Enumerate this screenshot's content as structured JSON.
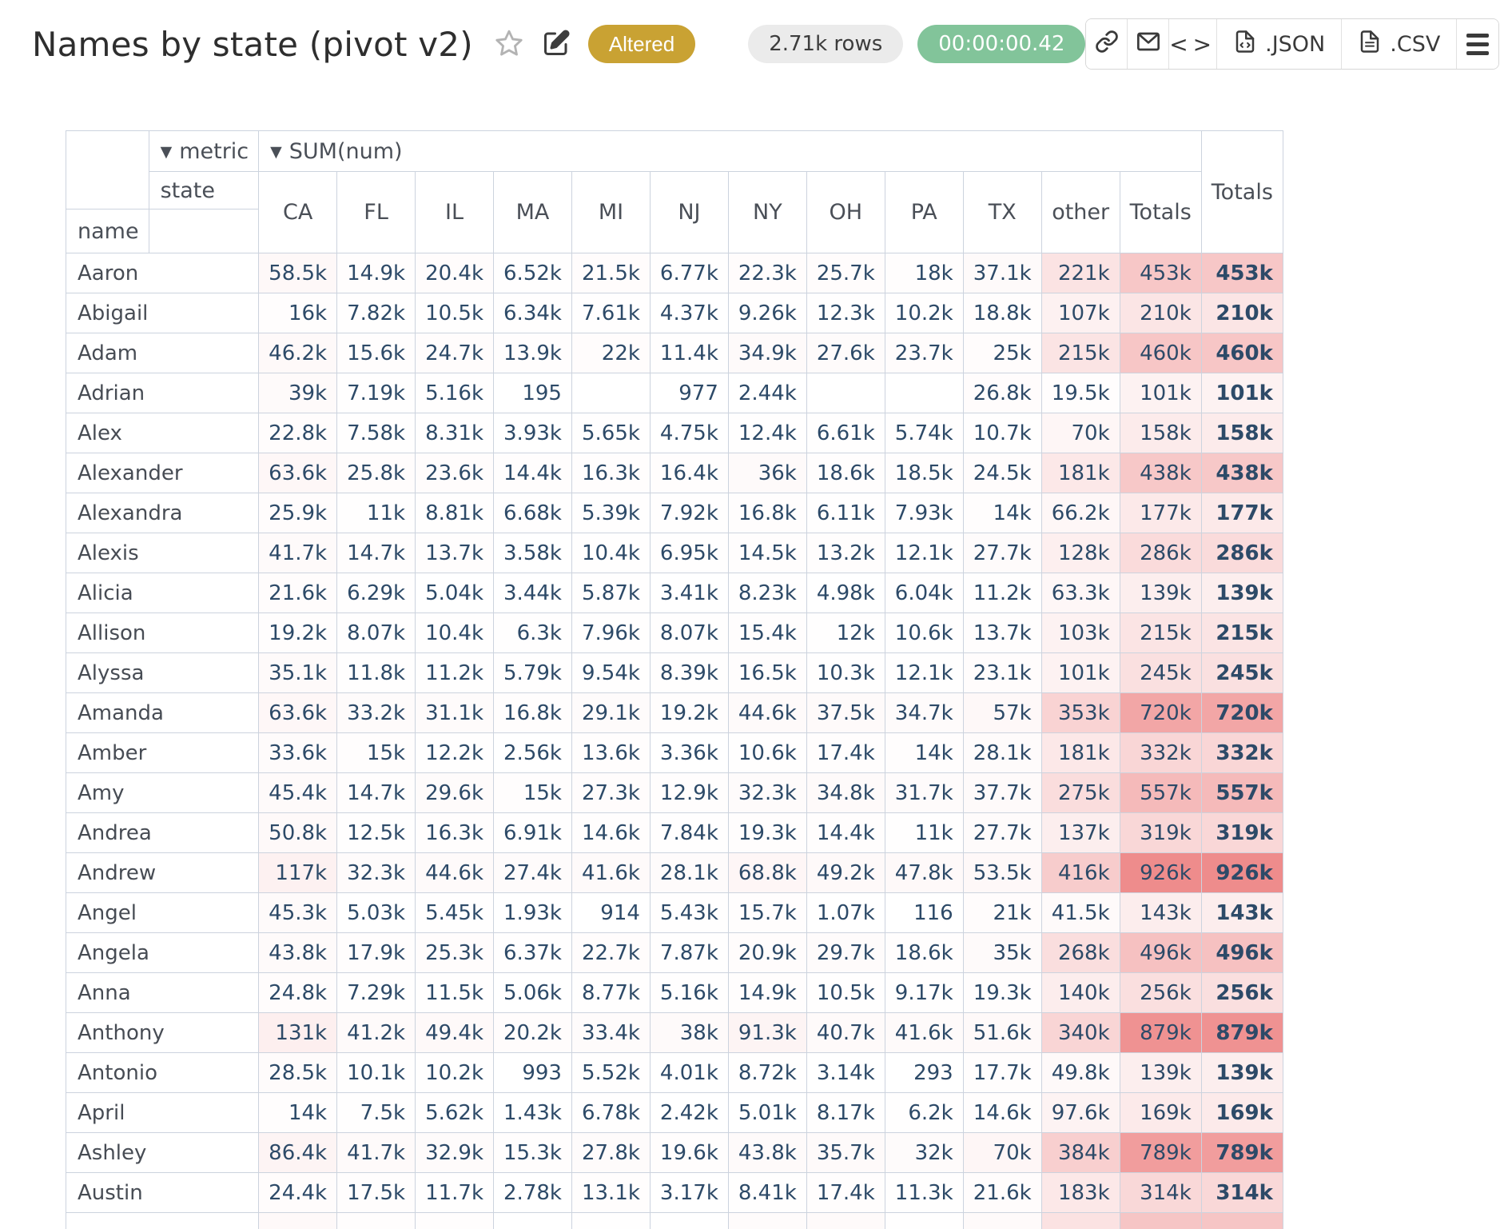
{
  "header": {
    "title": "Names by state (pivot v2)",
    "altered_badge": "Altered",
    "rows_badge": "2.71k rows",
    "timer_badge": "00:00:00.42",
    "toolbar": {
      "json_label": ".JSON",
      "csv_label": ".CSV"
    }
  },
  "colors": {
    "accent_gold": "#c9a233",
    "accent_green": "#82c49a",
    "heat_max_rgb": "238,140,140",
    "value_text": "#2d4a68",
    "grid_border": "#ccd3de"
  },
  "pivot": {
    "metric_caret": "▼",
    "metric_label": "metric",
    "sum_caret": "▼",
    "sum_label": "SUM(num)",
    "state_label": "state",
    "name_label": "name",
    "row_totals_label": "Totals",
    "grand_totals_label": "Totals",
    "columns": [
      "CA",
      "FL",
      "IL",
      "MA",
      "MI",
      "NJ",
      "NY",
      "OH",
      "PA",
      "TX",
      "other",
      "Totals"
    ],
    "max_value": 926000,
    "rows": [
      {
        "name": "Aaron",
        "values": [
          "58.5k",
          "14.9k",
          "20.4k",
          "6.52k",
          "21.5k",
          "6.77k",
          "22.3k",
          "25.7k",
          "18k",
          "37.1k",
          "221k",
          "453k"
        ],
        "total": "453k"
      },
      {
        "name": "Abigail",
        "values": [
          "16k",
          "7.82k",
          "10.5k",
          "6.34k",
          "7.61k",
          "4.37k",
          "9.26k",
          "12.3k",
          "10.2k",
          "18.8k",
          "107k",
          "210k"
        ],
        "total": "210k"
      },
      {
        "name": "Adam",
        "values": [
          "46.2k",
          "15.6k",
          "24.7k",
          "13.9k",
          "22k",
          "11.4k",
          "34.9k",
          "27.6k",
          "23.7k",
          "25k",
          "215k",
          "460k"
        ],
        "total": "460k"
      },
      {
        "name": "Adrian",
        "values": [
          "39k",
          "7.19k",
          "5.16k",
          "195",
          "",
          "977",
          "2.44k",
          "",
          "",
          "26.8k",
          "19.5k",
          "101k"
        ],
        "total": "101k"
      },
      {
        "name": "Alex",
        "values": [
          "22.8k",
          "7.58k",
          "8.31k",
          "3.93k",
          "5.65k",
          "4.75k",
          "12.4k",
          "6.61k",
          "5.74k",
          "10.7k",
          "70k",
          "158k"
        ],
        "total": "158k"
      },
      {
        "name": "Alexander",
        "values": [
          "63.6k",
          "25.8k",
          "23.6k",
          "14.4k",
          "16.3k",
          "16.4k",
          "36k",
          "18.6k",
          "18.5k",
          "24.5k",
          "181k",
          "438k"
        ],
        "total": "438k"
      },
      {
        "name": "Alexandra",
        "values": [
          "25.9k",
          "11k",
          "8.81k",
          "6.68k",
          "5.39k",
          "7.92k",
          "16.8k",
          "6.11k",
          "7.93k",
          "14k",
          "66.2k",
          "177k"
        ],
        "total": "177k"
      },
      {
        "name": "Alexis",
        "values": [
          "41.7k",
          "14.7k",
          "13.7k",
          "3.58k",
          "10.4k",
          "6.95k",
          "14.5k",
          "13.2k",
          "12.1k",
          "27.7k",
          "128k",
          "286k"
        ],
        "total": "286k"
      },
      {
        "name": "Alicia",
        "values": [
          "21.6k",
          "6.29k",
          "5.04k",
          "3.44k",
          "5.87k",
          "3.41k",
          "8.23k",
          "4.98k",
          "6.04k",
          "11.2k",
          "63.3k",
          "139k"
        ],
        "total": "139k"
      },
      {
        "name": "Allison",
        "values": [
          "19.2k",
          "8.07k",
          "10.4k",
          "6.3k",
          "7.96k",
          "8.07k",
          "15.4k",
          "12k",
          "10.6k",
          "13.7k",
          "103k",
          "215k"
        ],
        "total": "215k"
      },
      {
        "name": "Alyssa",
        "values": [
          "35.1k",
          "11.8k",
          "11.2k",
          "5.79k",
          "9.54k",
          "8.39k",
          "16.5k",
          "10.3k",
          "12.1k",
          "23.1k",
          "101k",
          "245k"
        ],
        "total": "245k"
      },
      {
        "name": "Amanda",
        "values": [
          "63.6k",
          "33.2k",
          "31.1k",
          "16.8k",
          "29.1k",
          "19.2k",
          "44.6k",
          "37.5k",
          "34.7k",
          "57k",
          "353k",
          "720k"
        ],
        "total": "720k"
      },
      {
        "name": "Amber",
        "values": [
          "33.6k",
          "15k",
          "12.2k",
          "2.56k",
          "13.6k",
          "3.36k",
          "10.6k",
          "17.4k",
          "14k",
          "28.1k",
          "181k",
          "332k"
        ],
        "total": "332k"
      },
      {
        "name": "Amy",
        "values": [
          "45.4k",
          "14.7k",
          "29.6k",
          "15k",
          "27.3k",
          "12.9k",
          "32.3k",
          "34.8k",
          "31.7k",
          "37.7k",
          "275k",
          "557k"
        ],
        "total": "557k"
      },
      {
        "name": "Andrea",
        "values": [
          "50.8k",
          "12.5k",
          "16.3k",
          "6.91k",
          "14.6k",
          "7.84k",
          "19.3k",
          "14.4k",
          "11k",
          "27.7k",
          "137k",
          "319k"
        ],
        "total": "319k"
      },
      {
        "name": "Andrew",
        "values": [
          "117k",
          "32.3k",
          "44.6k",
          "27.4k",
          "41.6k",
          "28.1k",
          "68.8k",
          "49.2k",
          "47.8k",
          "53.5k",
          "416k",
          "926k"
        ],
        "total": "926k"
      },
      {
        "name": "Angel",
        "values": [
          "45.3k",
          "5.03k",
          "5.45k",
          "1.93k",
          "914",
          "5.43k",
          "15.7k",
          "1.07k",
          "116",
          "21k",
          "41.5k",
          "143k"
        ],
        "total": "143k"
      },
      {
        "name": "Angela",
        "values": [
          "43.8k",
          "17.9k",
          "25.3k",
          "6.37k",
          "22.7k",
          "7.87k",
          "20.9k",
          "29.7k",
          "18.6k",
          "35k",
          "268k",
          "496k"
        ],
        "total": "496k"
      },
      {
        "name": "Anna",
        "values": [
          "24.8k",
          "7.29k",
          "11.5k",
          "5.06k",
          "8.77k",
          "5.16k",
          "14.9k",
          "10.5k",
          "9.17k",
          "19.3k",
          "140k",
          "256k"
        ],
        "total": "256k"
      },
      {
        "name": "Anthony",
        "values": [
          "131k",
          "41.2k",
          "49.4k",
          "20.2k",
          "33.4k",
          "38k",
          "91.3k",
          "40.7k",
          "41.6k",
          "51.6k",
          "340k",
          "879k"
        ],
        "total": "879k"
      },
      {
        "name": "Antonio",
        "values": [
          "28.5k",
          "10.1k",
          "10.2k",
          "993",
          "5.52k",
          "4.01k",
          "8.72k",
          "3.14k",
          "293",
          "17.7k",
          "49.8k",
          "139k"
        ],
        "total": "139k"
      },
      {
        "name": "April",
        "values": [
          "14k",
          "7.5k",
          "5.62k",
          "1.43k",
          "6.78k",
          "2.42k",
          "5.01k",
          "8.17k",
          "6.2k",
          "14.6k",
          "97.6k",
          "169k"
        ],
        "total": "169k"
      },
      {
        "name": "Ashley",
        "values": [
          "86.4k",
          "41.7k",
          "32.9k",
          "15.3k",
          "27.8k",
          "19.6k",
          "43.8k",
          "35.7k",
          "32k",
          "70k",
          "384k",
          "789k"
        ],
        "total": "789k"
      },
      {
        "name": "Austin",
        "values": [
          "24.4k",
          "17.5k",
          "11.7k",
          "2.78k",
          "13.1k",
          "3.17k",
          "8.41k",
          "17.4k",
          "11.3k",
          "21.6k",
          "183k",
          "314k"
        ],
        "total": "314k"
      }
    ]
  }
}
